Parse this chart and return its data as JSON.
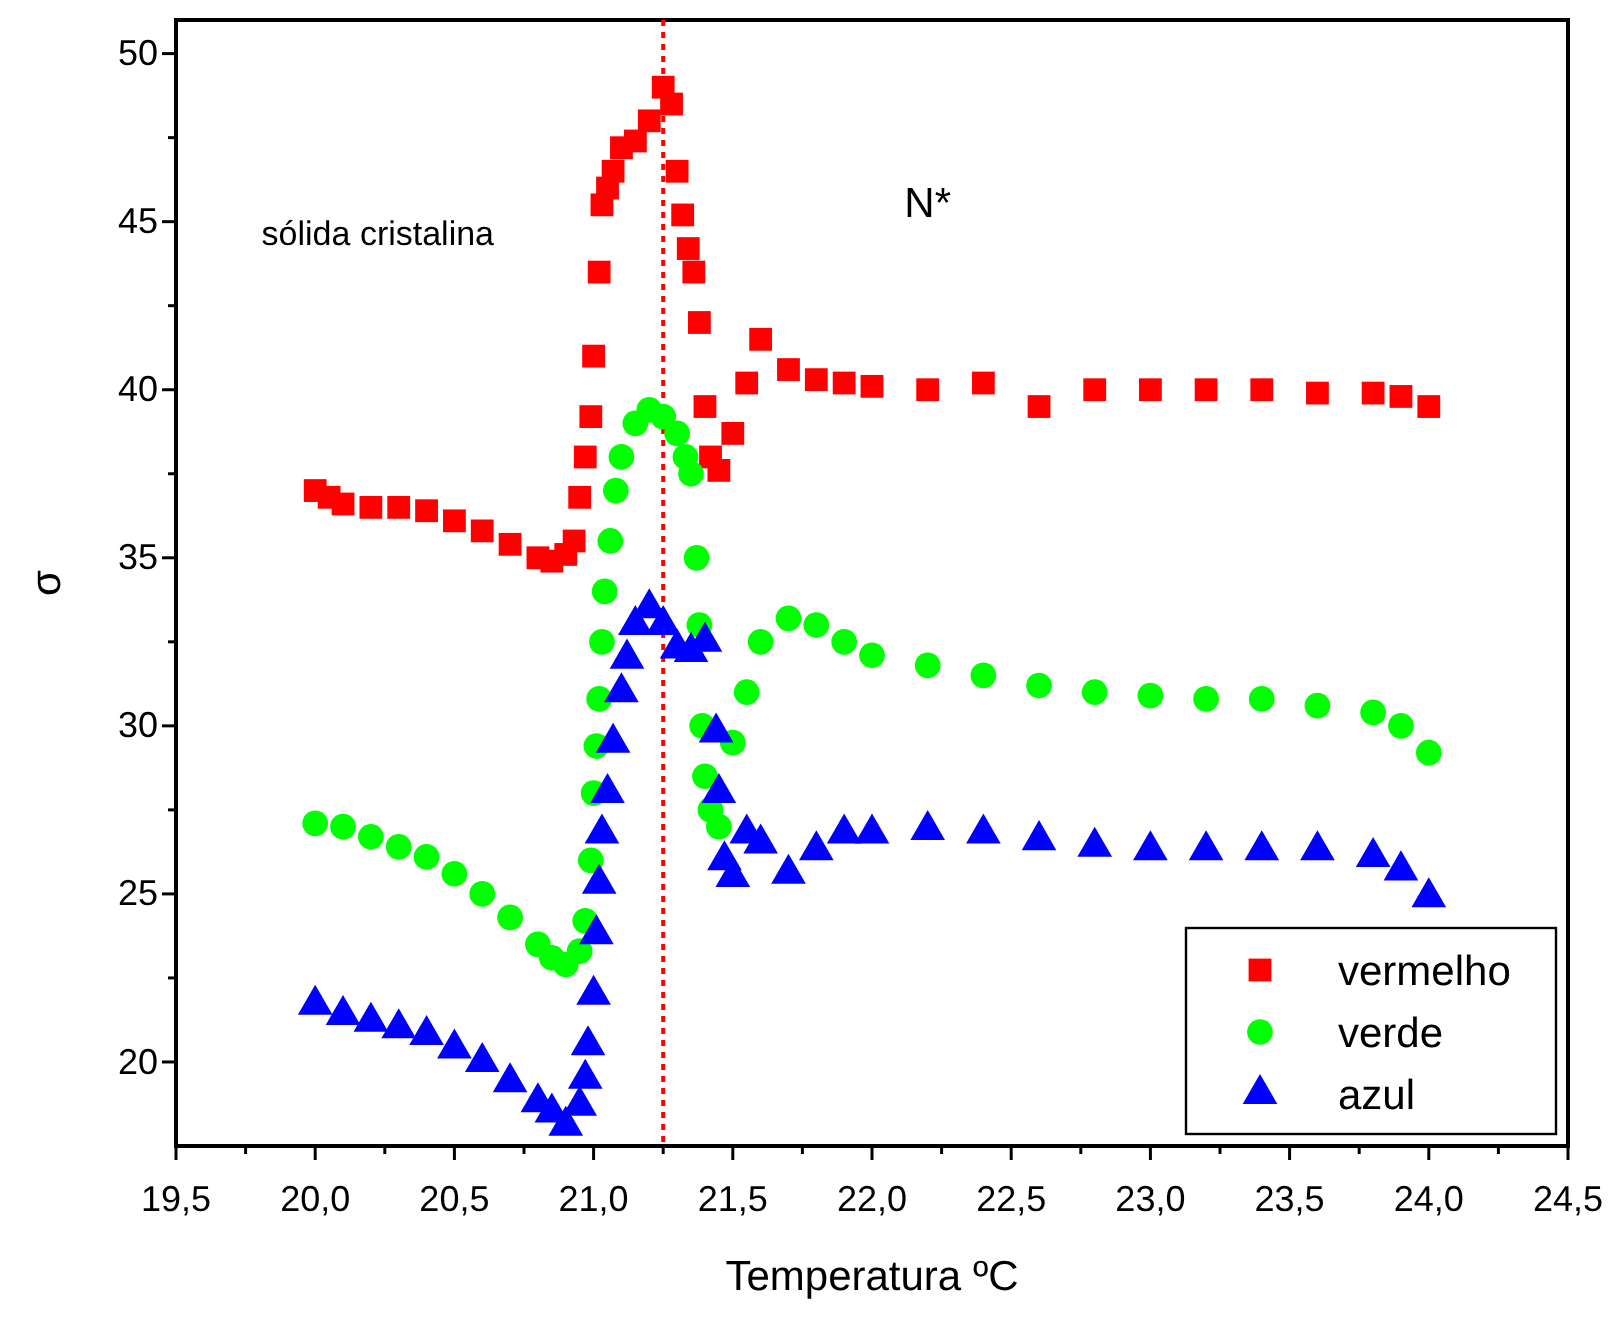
{
  "chart_data": {
    "type": "scatter",
    "xlabel": "Temperatura ºC",
    "ylabel": "σ",
    "xlim": [
      19.5,
      24.5
    ],
    "ylim": [
      17.5,
      51
    ],
    "xticks": [
      {
        "value": 19.5,
        "label": "19,5"
      },
      {
        "value": 19.75,
        "label": null
      },
      {
        "value": 20,
        "label": "20,0"
      },
      {
        "value": 20.25,
        "label": null
      },
      {
        "value": 20.5,
        "label": "20,5"
      },
      {
        "value": 20.75,
        "label": null
      },
      {
        "value": 21,
        "label": "21,0"
      },
      {
        "value": 21.25,
        "label": null
      },
      {
        "value": 21.5,
        "label": "21,5"
      },
      {
        "value": 21.75,
        "label": null
      },
      {
        "value": 22,
        "label": "22,0"
      },
      {
        "value": 22.25,
        "label": null
      },
      {
        "value": 22.5,
        "label": "22,5"
      },
      {
        "value": 22.75,
        "label": null
      },
      {
        "value": 23,
        "label": "23,0"
      },
      {
        "value": 23.25,
        "label": null
      },
      {
        "value": 23.5,
        "label": "23,5"
      },
      {
        "value": 23.75,
        "label": null
      },
      {
        "value": 24,
        "label": "24,0"
      },
      {
        "value": 24.25,
        "label": null
      },
      {
        "value": 24.5,
        "label": "24,5"
      }
    ],
    "yticks": [
      20,
      {
        "value": 22.5,
        "label": null
      },
      25,
      {
        "value": 27.5,
        "label": null
      },
      30,
      {
        "value": 32.5,
        "label": null
      },
      35,
      {
        "value": 37.5,
        "label": null
      },
      40,
      {
        "value": 42.5,
        "label": null
      },
      45,
      {
        "value": 47.5,
        "label": null
      },
      50
    ],
    "grid": false,
    "legend": "bottom right",
    "ref_lines": [
      {
        "axis": "x",
        "value": 21.25,
        "color": "#ff0000",
        "line_style": "dotted"
      }
    ],
    "annotations": [
      "sólida cristalina",
      "N*"
    ],
    "series": [
      {
        "name": "vermelho",
        "color": "#ff0000",
        "marker": "square",
        "x": [
          20.0,
          20.05,
          20.1,
          20.2,
          20.3,
          20.4,
          20.5,
          20.6,
          20.7,
          20.8,
          20.85,
          20.9,
          20.93,
          20.95,
          20.97,
          20.99,
          21.0,
          21.02,
          21.03,
          21.05,
          21.07,
          21.1,
          21.15,
          21.2,
          21.25,
          21.28,
          21.3,
          21.32,
          21.34,
          21.36,
          21.38,
          21.4,
          21.42,
          21.45,
          21.5,
          21.55,
          21.6,
          21.7,
          21.8,
          21.9,
          22.0,
          22.2,
          22.4,
          22.6,
          22.8,
          23.0,
          23.2,
          23.4,
          23.6,
          23.8,
          23.9,
          24.0
        ],
        "values": [
          37.0,
          36.8,
          36.6,
          36.5,
          36.5,
          36.4,
          36.1,
          35.8,
          35.4,
          35.0,
          34.9,
          35.1,
          35.5,
          36.8,
          38.0,
          39.2,
          41.0,
          43.5,
          45.5,
          46.0,
          46.5,
          47.2,
          47.4,
          48.0,
          49.0,
          48.5,
          46.5,
          45.2,
          44.2,
          43.5,
          42.0,
          39.5,
          38.0,
          37.6,
          38.7,
          40.2,
          41.5,
          40.6,
          40.3,
          40.2,
          40.1,
          40.0,
          40.2,
          39.5,
          40.0,
          40.0,
          40.0,
          40.0,
          39.9,
          39.9,
          39.8,
          39.5
        ]
      },
      {
        "name": "verde",
        "color": "#00ff00",
        "marker": "circle",
        "x": [
          20.0,
          20.1,
          20.2,
          20.3,
          20.4,
          20.5,
          20.6,
          20.7,
          20.8,
          20.85,
          20.9,
          20.95,
          20.97,
          20.99,
          21.0,
          21.01,
          21.02,
          21.03,
          21.04,
          21.06,
          21.08,
          21.1,
          21.15,
          21.2,
          21.25,
          21.3,
          21.33,
          21.35,
          21.37,
          21.38,
          21.39,
          21.4,
          21.42,
          21.45,
          21.5,
          21.55,
          21.6,
          21.7,
          21.8,
          21.9,
          22.0,
          22.2,
          22.4,
          22.6,
          22.8,
          23.0,
          23.2,
          23.4,
          23.6,
          23.8,
          23.9,
          24.0
        ],
        "values": [
          27.1,
          27.0,
          26.7,
          26.4,
          26.1,
          25.6,
          25.0,
          24.3,
          23.5,
          23.1,
          22.9,
          23.3,
          24.2,
          26.0,
          28.0,
          29.4,
          30.8,
          32.5,
          34.0,
          35.5,
          37.0,
          38.0,
          39.0,
          39.4,
          39.2,
          38.7,
          38.0,
          37.5,
          35.0,
          33.0,
          30.0,
          28.5,
          27.5,
          27.0,
          29.5,
          31.0,
          32.5,
          33.2,
          33.0,
          32.5,
          32.1,
          31.8,
          31.5,
          31.2,
          31.0,
          30.9,
          30.8,
          30.8,
          30.6,
          30.4,
          30.0,
          29.2
        ]
      },
      {
        "name": "azul",
        "color": "#0000ff",
        "marker": "triangle",
        "x": [
          20.0,
          20.1,
          20.2,
          20.3,
          20.4,
          20.5,
          20.6,
          20.7,
          20.8,
          20.85,
          20.9,
          20.95,
          20.97,
          20.98,
          21.0,
          21.01,
          21.02,
          21.03,
          21.05,
          21.07,
          21.1,
          21.12,
          21.15,
          21.2,
          21.25,
          21.3,
          21.35,
          21.4,
          21.44,
          21.45,
          21.47,
          21.5,
          21.55,
          21.6,
          21.7,
          21.8,
          21.9,
          22.0,
          22.2,
          22.4,
          22.6,
          22.8,
          23.0,
          23.2,
          23.4,
          23.6,
          23.8,
          23.9,
          24.0
        ],
        "values": [
          21.7,
          21.4,
          21.2,
          21.0,
          20.8,
          20.4,
          20.0,
          19.4,
          18.8,
          18.5,
          18.1,
          18.7,
          19.5,
          20.5,
          22.0,
          23.8,
          25.3,
          26.8,
          28.0,
          29.5,
          31.0,
          32.0,
          33.0,
          33.5,
          33.0,
          32.3,
          32.2,
          32.5,
          29.8,
          28.0,
          26.0,
          25.5,
          26.8,
          26.5,
          25.6,
          26.3,
          26.8,
          26.8,
          26.9,
          26.8,
          26.6,
          26.4,
          26.3,
          26.3,
          26.3,
          26.3,
          26.1,
          25.7,
          24.9
        ]
      }
    ]
  }
}
